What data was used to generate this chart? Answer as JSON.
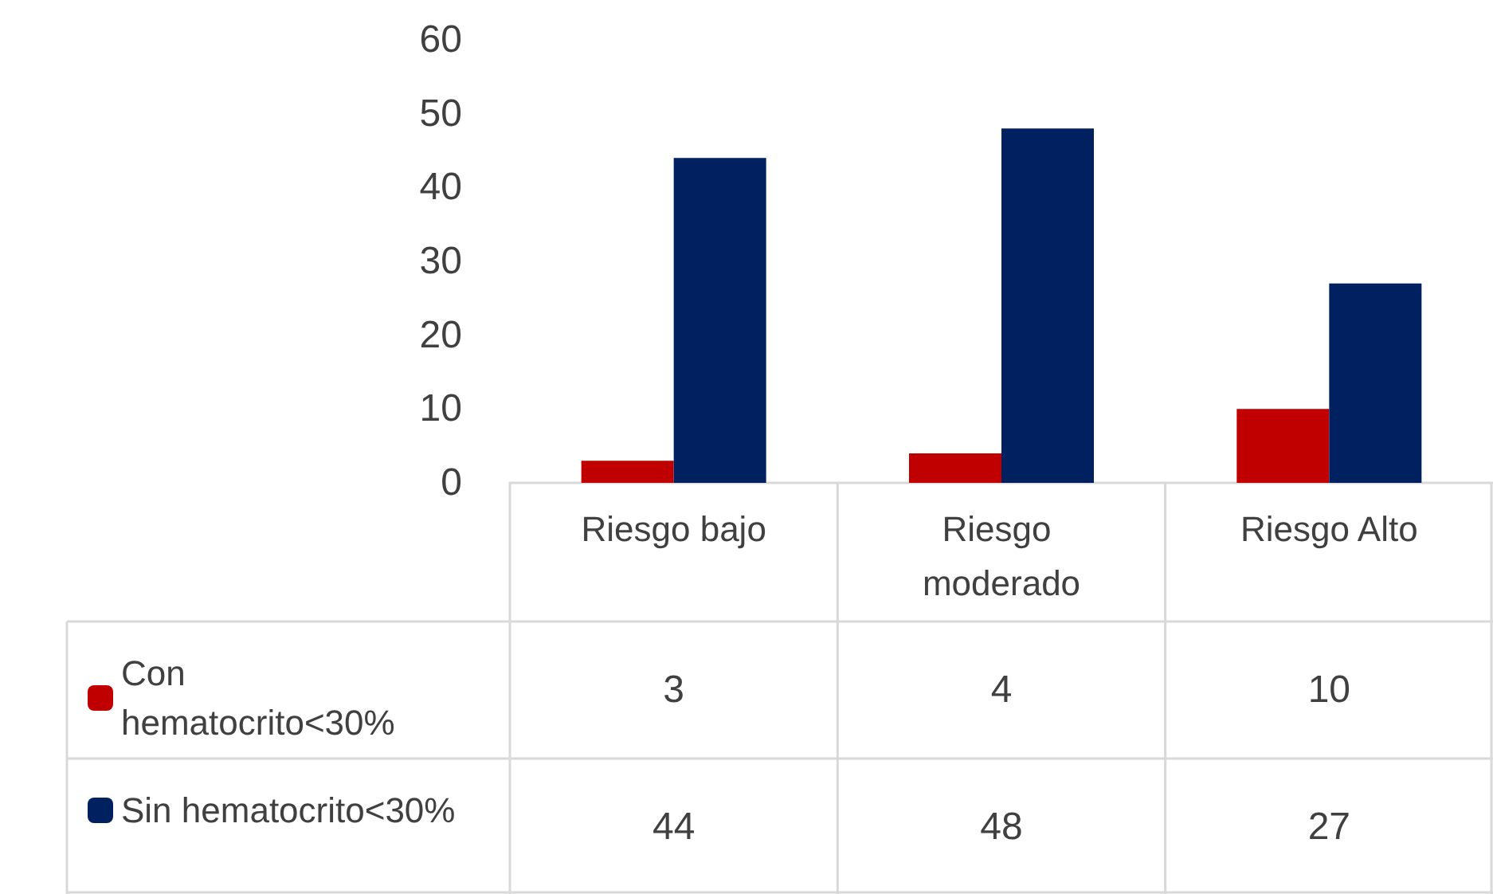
{
  "chart_data": {
    "type": "bar",
    "categories": [
      "Riesgo bajo",
      "Riesgo moderado",
      "Riesgo Alto"
    ],
    "series": [
      {
        "name": "Con hematocrito<30%",
        "color": "#c00000",
        "values": [
          3,
          4,
          10
        ]
      },
      {
        "name": "Sin hematocrito<30%",
        "color": "#002060",
        "values": [
          44,
          48,
          27
        ]
      }
    ],
    "ylim": [
      0,
      60
    ],
    "yticks": [
      0,
      10,
      20,
      30,
      40,
      50,
      60
    ],
    "grid": false,
    "legend": "bottom",
    "data_labels": true
  }
}
